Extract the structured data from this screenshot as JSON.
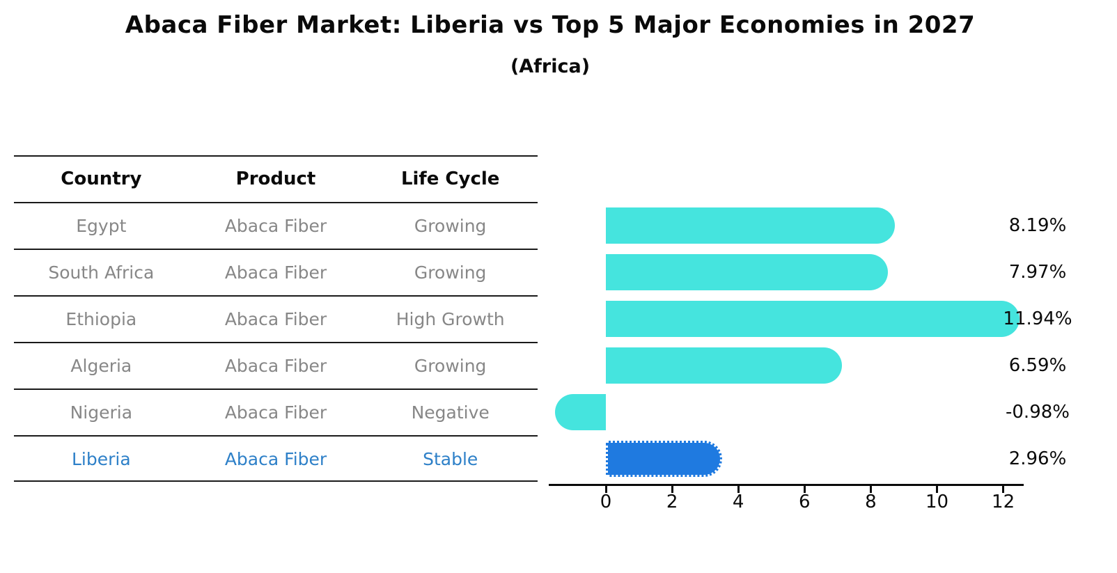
{
  "title": "Abaca Fiber Market: Liberia vs Top 5 Major Economies in 2027",
  "subtitle": "(Africa)",
  "table": {
    "headers": [
      "Country",
      "Product",
      "Life Cycle"
    ],
    "rows": [
      {
        "country": "Egypt",
        "product": "Abaca Fiber",
        "life_cycle": "Growing"
      },
      {
        "country": "South Africa",
        "product": "Abaca Fiber",
        "life_cycle": "Growing"
      },
      {
        "country": "Ethiopia",
        "product": "Abaca Fiber",
        "life_cycle": "High Growth"
      },
      {
        "country": "Algeria",
        "product": "Abaca Fiber",
        "life_cycle": "Growing"
      },
      {
        "country": "Nigeria",
        "product": "Abaca Fiber",
        "life_cycle": "Negative"
      },
      {
        "country": "Liberia",
        "product": "Abaca Fiber",
        "life_cycle": "Stable"
      }
    ],
    "highlight_row": 5
  },
  "chart_data": {
    "type": "bar",
    "orientation": "horizontal",
    "title": "Abaca Fiber Market: Liberia vs Top 5 Major Economies in 2027",
    "subtitle": "(Africa)",
    "categories": [
      "Egypt",
      "South Africa",
      "Ethiopia",
      "Algeria",
      "Nigeria",
      "Liberia"
    ],
    "values": [
      8.19,
      7.97,
      11.94,
      6.59,
      -0.98,
      2.96
    ],
    "value_labels": [
      "8.19%",
      "7.97%",
      "11.94%",
      "6.59%",
      "-0.98%",
      "2.96%"
    ],
    "unit": "percent",
    "x_ticks": [
      "0",
      "2",
      "4",
      "6",
      "8",
      "10",
      "12"
    ],
    "x_tick_values": [
      0,
      2,
      4,
      6,
      8,
      10,
      12
    ],
    "xlim": [
      -1.72,
      12.62
    ],
    "grid": false,
    "legend": null,
    "highlight_index": 5,
    "colors": {
      "bar": "#45E4DE",
      "highlight_bar": "#1F7AE0",
      "highlight_text": "#2E80C8",
      "row_text": "#878787",
      "header_text": "#0a0a0a",
      "axis": "#0a0a0a",
      "value_label": "#0a0a0a"
    }
  }
}
